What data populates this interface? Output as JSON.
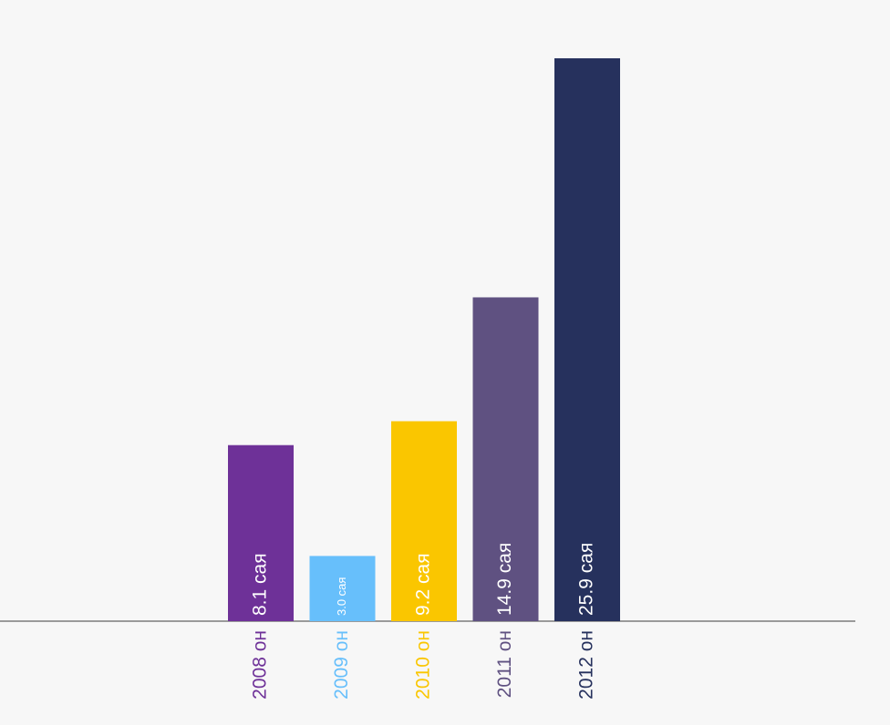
{
  "chart_data": {
    "type": "bar",
    "categories": [
      "2008 он",
      "2009 он",
      "2010 он",
      "2011 он",
      "2012 он"
    ],
    "values": [
      8.1,
      3.0,
      9.2,
      14.9,
      25.9
    ],
    "value_labels": [
      "8.1 сая",
      "3.0 сая",
      "9.2 сая",
      "14.9 сая",
      "25.9 сая"
    ],
    "colors": [
      "#6e3198",
      "#67bffb",
      "#fac600",
      "#5f5181",
      "#26315d"
    ]
  }
}
